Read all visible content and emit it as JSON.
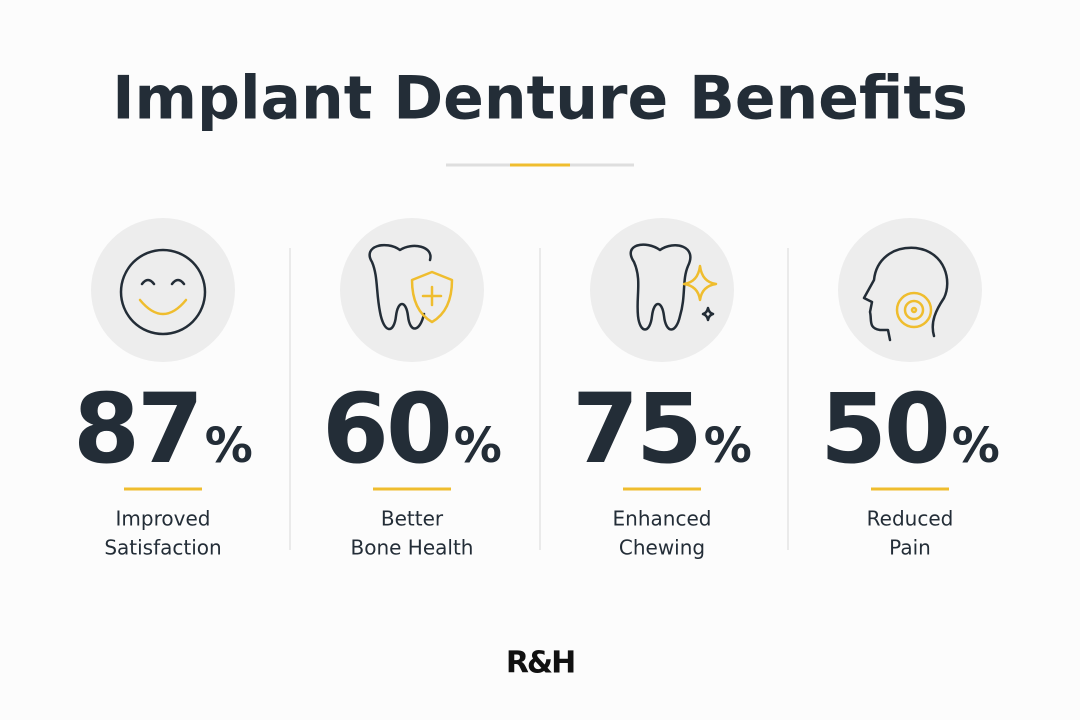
{
  "header": {
    "title": "Implant Denture Benefits"
  },
  "stats": [
    {
      "value": 87,
      "unit": "%",
      "label": [
        "Improved",
        "Satisfaction"
      ]
    },
    {
      "value": 60,
      "unit": "%",
      "label": [
        "Better",
        "Bone Health"
      ]
    },
    {
      "value": 75,
      "unit": "%",
      "label": [
        "Enhanced",
        "Chewing"
      ]
    },
    {
      "value": 50,
      "unit": "%",
      "label": [
        "Reduced",
        "Pain"
      ]
    }
  ],
  "footer": {
    "logo": "R&H"
  }
}
